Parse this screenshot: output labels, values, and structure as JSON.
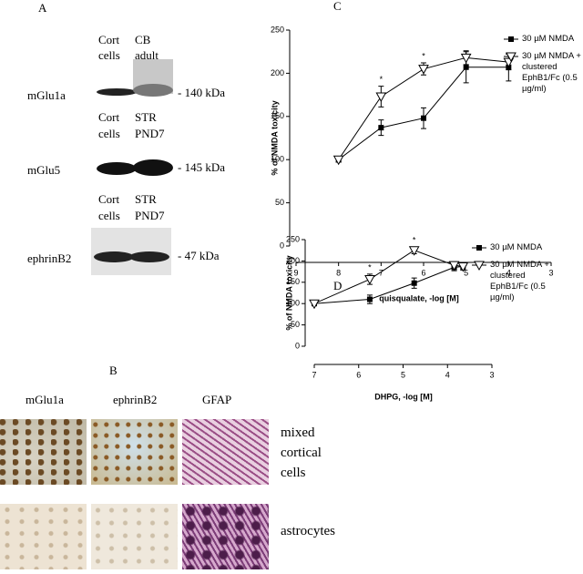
{
  "figure": {
    "panel_a": {
      "label": "A",
      "blots": [
        {
          "lanes": [
            [
              "Cort",
              "cells"
            ],
            [
              "CB",
              "adult"
            ]
          ],
          "protein": "mGlu1a",
          "size": "- 140 kDa"
        },
        {
          "lanes": [
            [
              "Cort",
              "cells"
            ],
            [
              "STR",
              "PND7"
            ]
          ],
          "protein": "mGlu5",
          "size": "- 145 kDa"
        },
        {
          "lanes": [
            [
              "Cort",
              "cells"
            ],
            [
              "STR",
              "PND7"
            ]
          ],
          "protein": "ephrinB2",
          "size": "- 47 kDa"
        }
      ]
    },
    "panel_b": {
      "label": "B",
      "columns": [
        "mGlu1a",
        "ephrinB2",
        "GFAP"
      ],
      "rows": [
        "mixed cortical cells",
        "astrocytes"
      ]
    }
  },
  "chart_data": [
    {
      "type": "line",
      "panel_label": "C",
      "x_label": "quisqualate, -log [M]",
      "y_label": "% of NMDA toxicity",
      "x": [
        8,
        7,
        6,
        5,
        4
      ],
      "xlim": [
        9,
        3
      ],
      "xticks": [
        9,
        8,
        7,
        6,
        5,
        4,
        3
      ],
      "ylim": [
        0,
        250
      ],
      "yticks": [
        0,
        50,
        100,
        150,
        200,
        250
      ],
      "series": [
        {
          "name": "30 µM NMDA",
          "color": "#000000",
          "marker": "square",
          "values": [
            100,
            137,
            148,
            207,
            207
          ],
          "errors": [
            3,
            9,
            12,
            18,
            16
          ]
        },
        {
          "name": "30 µM NMDA + clustered EphB1/Fc (0.5 µg/ml)",
          "color": "#000000",
          "marker": "triangle-down",
          "values": [
            100,
            173,
            205,
            218,
            213
          ],
          "errors": [
            3,
            12,
            7,
            8,
            9
          ]
        }
      ],
      "annotations": [
        {
          "text": "*",
          "x": 7
        },
        {
          "text": "*",
          "x": 6
        }
      ]
    },
    {
      "type": "line",
      "panel_label": "D",
      "x_label": "DHPG, -log [M]",
      "y_label": "% of NMDA toxicity",
      "x": [
        7,
        5.75,
        4.75,
        3.85,
        3.65
      ],
      "xlim": [
        7,
        3
      ],
      "xticks": [
        7,
        6,
        5,
        4,
        3
      ],
      "ylim": [
        0,
        250
      ],
      "yticks": [
        0,
        50,
        100,
        150,
        200,
        250
      ],
      "series": [
        {
          "name": "30 µM NMDA",
          "color": "#000000",
          "marker": "square",
          "values": [
            100,
            110,
            148,
            185,
            187
          ],
          "errors": [
            3,
            10,
            12,
            8,
            8
          ]
        },
        {
          "name": "30 µM NMDA + clustered EphB1/Fc (0.5 µg/ml)",
          "color": "#000000",
          "marker": "triangle-down",
          "values": [
            100,
            157,
            225,
            190,
            187
          ],
          "errors": [
            3,
            12,
            8,
            8,
            8
          ]
        }
      ],
      "annotations": [
        {
          "text": "*",
          "x": 5.75
        },
        {
          "text": "*",
          "x": 4.75
        }
      ]
    }
  ]
}
